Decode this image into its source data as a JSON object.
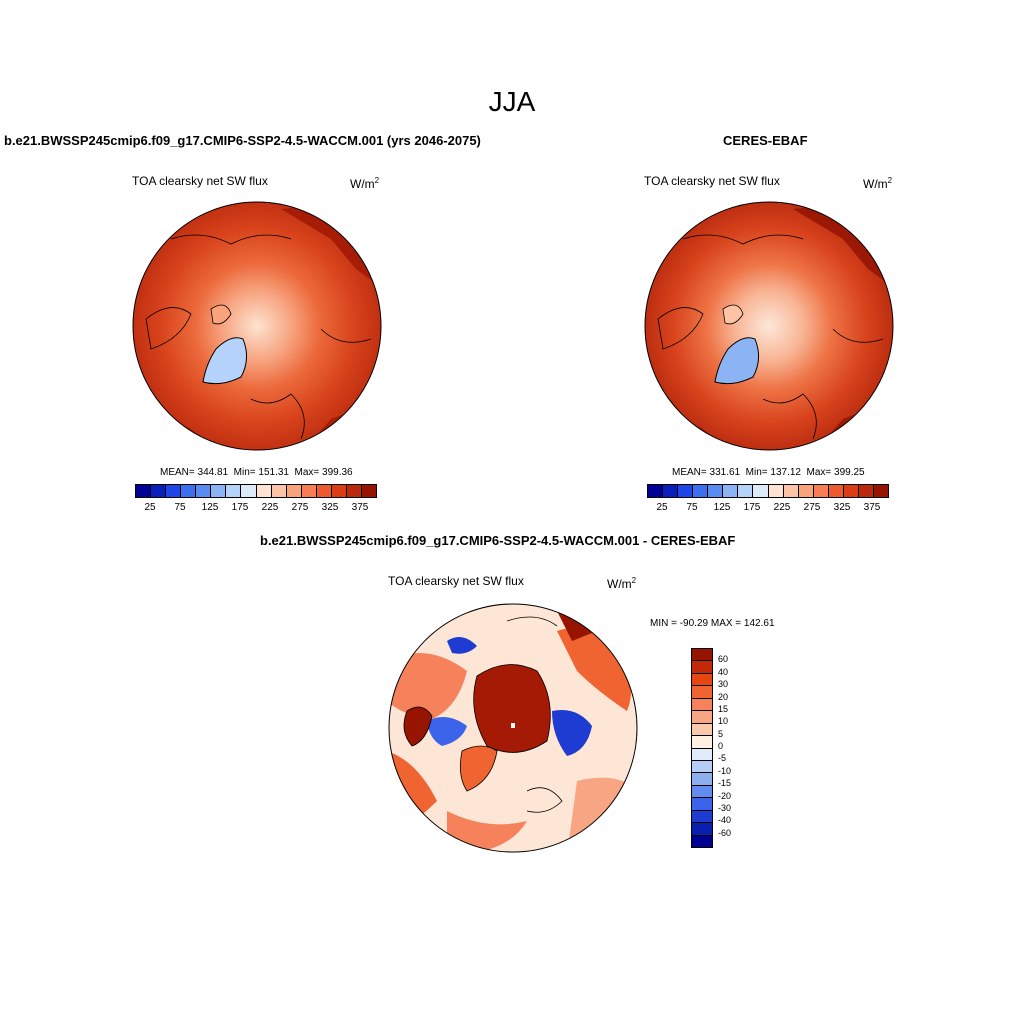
{
  "title": "JJA",
  "panels": {
    "model": {
      "title": "b.e21.BWSSP245cmip6.f09_g17.CMIP6-SSP2-4.5-WACCM.001 (yrs 2046-2075)",
      "var_label": "TOA clearsky net SW flux",
      "units": "W/m",
      "units_sup": "2",
      "stats": "MEAN= 344.81  Min= 151.31  Max= 399.36"
    },
    "obs": {
      "title": "CERES-EBAF",
      "var_label": "TOA clearsky net SW flux",
      "units": "W/m",
      "units_sup": "2",
      "stats": "MEAN= 331.61  Min= 137.12  Max= 399.25"
    },
    "diff": {
      "title": "b.e21.BWSSP245cmip6.f09_g17.CMIP6-SSP2-4.5-WACCM.001 - CERES-EBAF",
      "var_label": "TOA clearsky net SW flux",
      "units": "W/m",
      "units_sup": "2",
      "stats": "MIN = -90.29 MAX = 142.61"
    }
  },
  "colorbar_abs": {
    "ticks": [
      "25",
      "75",
      "125",
      "175",
      "225",
      "275",
      "325",
      "375"
    ],
    "colors": [
      "#000094",
      "#0a1ec0",
      "#1e46e6",
      "#3c6ef0",
      "#5a8cf0",
      "#8cb4f5",
      "#b4d2fa",
      "#dcebfa",
      "#fde3d0",
      "#fcc4a4",
      "#fba37a",
      "#f77d52",
      "#ee5a30",
      "#db3c14",
      "#be280a",
      "#961400"
    ]
  },
  "colorbar_diff": {
    "labels": [
      "60",
      "40",
      "30",
      "20",
      "15",
      "10",
      "5",
      "0",
      "-5",
      "-10",
      "-15",
      "-20",
      "-30",
      "-40",
      "-60"
    ],
    "colors": [
      "#961400",
      "#c32808",
      "#e6460f",
      "#f06432",
      "#f5825a",
      "#f8a583",
      "#fac8aa",
      "#fff0e1",
      "#e1ebfa",
      "#b4cdf5",
      "#8caff0",
      "#648cf0",
      "#3c64eb",
      "#1e3cd2",
      "#0a1eaf",
      "#000091"
    ]
  },
  "colors": {
    "land_outline": "#000000",
    "map_background": "#c8340f"
  }
}
